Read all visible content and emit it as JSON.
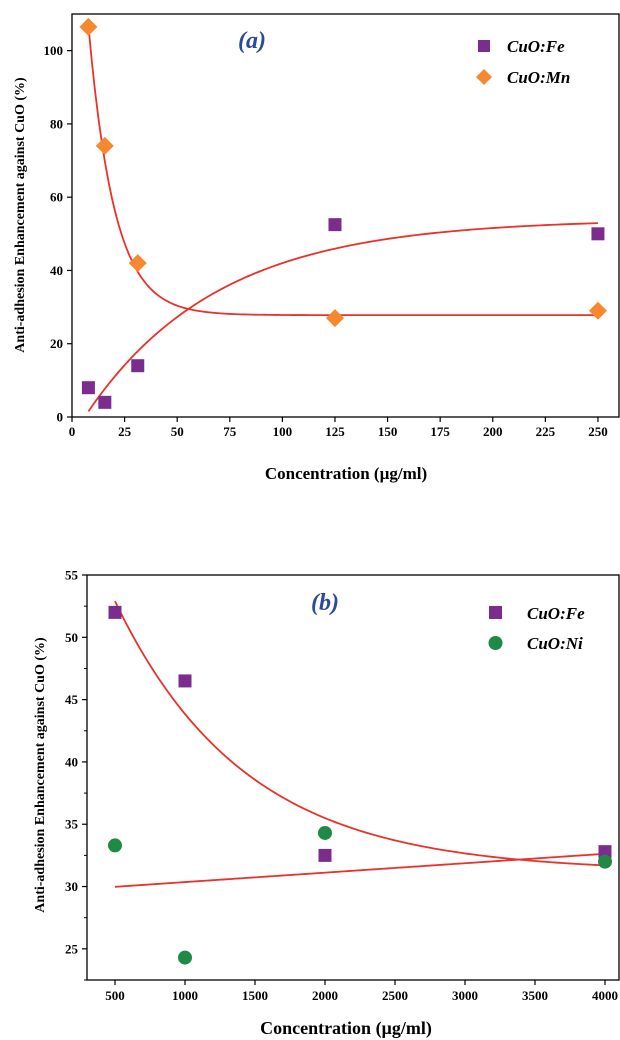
{
  "chart_data": [
    {
      "type": "scatter",
      "panel_label": "(a)",
      "xlabel": "Concentration (µg/ml)",
      "ylabel": "Anti-adhesion Enhancement against CuO (%)",
      "xlim": [
        0,
        260
      ],
      "ylim": [
        0,
        110
      ],
      "xticks": [
        0,
        25,
        50,
        75,
        100,
        125,
        150,
        175,
        200,
        225,
        250
      ],
      "yticks": [
        0,
        20,
        40,
        60,
        80,
        100
      ],
      "legend_position": "top-right",
      "fit_color": "#e8322a",
      "series": [
        {
          "name": "CuO:Fe",
          "marker": "square",
          "color": "#7b2d8e",
          "x": [
            7.8,
            15.6,
            31.25,
            125,
            250
          ],
          "y": [
            8,
            4,
            14,
            52.5,
            50
          ],
          "fit": {
            "model": "exp_rise",
            "x_range": [
              7.8,
              250
            ],
            "params": {
              "A": 54,
              "k": 0.016,
              "x0": 6
            }
          }
        },
        {
          "name": "CuO:Mn",
          "marker": "diamond",
          "color": "#f7882f",
          "x": [
            7.8,
            15.6,
            31.25,
            125,
            250
          ],
          "y": [
            106.5,
            74,
            42,
            27,
            29
          ],
          "fit": {
            "model": "exp_decay",
            "x_range": [
              7.8,
              250
            ],
            "params": {
              "base": 27.8,
              "amp": 79,
              "k": 0.081,
              "x0": 7.8
            }
          }
        }
      ]
    },
    {
      "type": "scatter",
      "panel_label": "(b)",
      "xlabel": "Concentration (µg/ml)",
      "ylabel": "Anti-adhesion Enhancement against CuO (%)",
      "xlim": [
        300,
        4100
      ],
      "ylim": [
        22.5,
        55
      ],
      "xticks": [
        500,
        1000,
        1500,
        2000,
        2500,
        3000,
        3500,
        4000
      ],
      "yticks": [
        25,
        30,
        35,
        40,
        45,
        50,
        55
      ],
      "legend_position": "top-right",
      "fit_color": "#e8322a",
      "series": [
        {
          "name": "CuO:Fe",
          "marker": "square",
          "color": "#7b2d8e",
          "x": [
            500,
            1000,
            2000,
            4000
          ],
          "y": [
            52,
            46.5,
            32.5,
            32.8
          ],
          "fit": {
            "model": "exp_decay",
            "x_range": [
              500,
              4000
            ],
            "params": {
              "base": 31.2,
              "amp": 21.7,
              "k": 0.00108,
              "x0": 500
            }
          }
        },
        {
          "name": "CuO:Ni",
          "marker": "circle",
          "color": "#1e8a45",
          "x": [
            500,
            1000,
            2000,
            4000
          ],
          "y": [
            33.3,
            24.3,
            34.3,
            32
          ],
          "fit": {
            "model": "linear",
            "x_range": [
              500,
              4000
            ],
            "params": {
              "slope": 0.000757,
              "intercept": 29.6
            }
          }
        }
      ]
    }
  ]
}
